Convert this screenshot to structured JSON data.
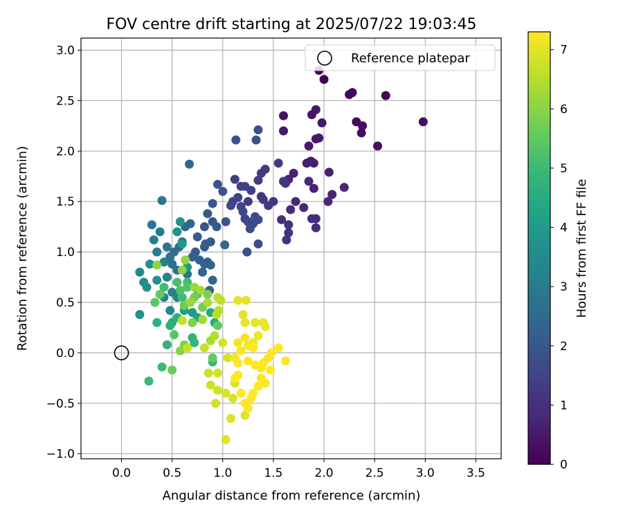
{
  "chart_data": {
    "type": "scatter",
    "title": "FOV centre drift starting at 2025/07/22 19:03:45",
    "xlabel": "Angular distance from reference (arcmin)",
    "ylabel": "Rotation from reference (arcmin)",
    "xlim": [
      -0.4,
      3.75
    ],
    "ylim": [
      -1.05,
      3.12
    ],
    "xticks": [
      0.0,
      0.5,
      1.0,
      1.5,
      2.0,
      2.5,
      3.0,
      3.5
    ],
    "xtick_labels": [
      "0.0",
      "0.5",
      "1.0",
      "1.5",
      "2.0",
      "2.5",
      "3.0",
      "3.5"
    ],
    "yticks": [
      -1.0,
      -0.5,
      0.0,
      0.5,
      1.0,
      1.5,
      2.0,
      2.5,
      3.0
    ],
    "ytick_labels": [
      "−1.0",
      "−0.5",
      "0.0",
      "0.5",
      "1.0",
      "1.5",
      "2.0",
      "2.5",
      "3.0"
    ],
    "grid": true,
    "legend": {
      "label": "Reference platepar",
      "position": "upper right"
    },
    "reference_point": {
      "x": 0.0,
      "y": 0.0
    },
    "colorbar": {
      "label": "Hours from first FF file",
      "colormap": "viridis",
      "range": [
        0,
        7.3
      ],
      "ticks": [
        0,
        1,
        2,
        3,
        4,
        5,
        6,
        7
      ],
      "tick_labels": [
        "0",
        "1",
        "2",
        "3",
        "4",
        "5",
        "6",
        "7"
      ]
    },
    "colormap_stops": [
      "#440154",
      "#482878",
      "#3e4989",
      "#31688e",
      "#26828e",
      "#1f9e89",
      "#35b779",
      "#6ece58",
      "#b5de2b",
      "#fde725"
    ],
    "series_columns": [
      "x",
      "y",
      "hours"
    ],
    "points": [
      [
        1.95,
        2.8,
        0.02
      ],
      [
        2.0,
        2.71,
        0.05
      ],
      [
        2.25,
        2.56,
        0.1
      ],
      [
        2.28,
        2.58,
        0.12
      ],
      [
        2.61,
        2.55,
        0.15
      ],
      [
        2.32,
        2.29,
        0.2
      ],
      [
        2.38,
        2.25,
        0.22
      ],
      [
        2.37,
        2.18,
        0.25
      ],
      [
        2.98,
        2.29,
        0.3
      ],
      [
        2.53,
        2.05,
        0.33
      ],
      [
        1.6,
        2.35,
        0.38
      ],
      [
        1.88,
        2.36,
        0.4
      ],
      [
        1.92,
        2.41,
        0.42
      ],
      [
        1.98,
        2.28,
        0.45
      ],
      [
        1.6,
        2.2,
        0.48
      ],
      [
        1.92,
        2.12,
        0.5
      ],
      [
        1.95,
        2.13,
        0.52
      ],
      [
        1.85,
        2.05,
        0.55
      ],
      [
        1.87,
        1.9,
        0.58
      ],
      [
        1.9,
        1.88,
        0.6
      ],
      [
        1.83,
        1.88,
        0.62
      ],
      [
        2.05,
        1.79,
        0.65
      ],
      [
        1.7,
        1.78,
        0.68
      ],
      [
        1.65,
        1.72,
        0.7
      ],
      [
        1.9,
        1.63,
        0.72
      ],
      [
        2.08,
        1.57,
        0.75
      ],
      [
        2.2,
        1.64,
        0.78
      ],
      [
        2.04,
        1.5,
        0.8
      ],
      [
        1.85,
        1.7,
        0.82
      ],
      [
        1.72,
        1.5,
        0.85
      ],
      [
        1.8,
        1.44,
        0.88
      ],
      [
        1.67,
        1.42,
        0.9
      ],
      [
        1.92,
        1.33,
        0.92
      ],
      [
        1.88,
        1.33,
        0.95
      ],
      [
        1.92,
        1.24,
        0.98
      ],
      [
        1.58,
        1.32,
        1.0
      ],
      [
        1.65,
        1.27,
        1.02
      ],
      [
        1.65,
        1.19,
        1.05
      ],
      [
        1.63,
        1.12,
        1.08
      ],
      [
        1.6,
        1.7,
        1.1
      ],
      [
        1.62,
        1.68,
        1.12
      ],
      [
        1.5,
        1.5,
        1.15
      ],
      [
        1.45,
        1.46,
        1.18
      ],
      [
        1.38,
        1.55,
        1.2
      ],
      [
        1.4,
        1.52,
        1.22
      ],
      [
        1.55,
        1.88,
        1.25
      ],
      [
        1.38,
        1.78,
        1.28
      ],
      [
        1.42,
        1.82,
        1.3
      ],
      [
        1.35,
        1.71,
        1.32
      ],
      [
        1.25,
        1.5,
        1.35
      ],
      [
        1.28,
        1.61,
        1.38
      ],
      [
        1.12,
        1.72,
        1.4
      ],
      [
        1.22,
        1.65,
        1.42
      ],
      [
        1.18,
        1.65,
        1.45
      ],
      [
        1.15,
        1.54,
        1.48
      ],
      [
        1.1,
        1.5,
        1.5
      ],
      [
        1.08,
        1.46,
        1.52
      ],
      [
        1.18,
        1.45,
        1.55
      ],
      [
        1.2,
        1.4,
        1.58
      ],
      [
        1.22,
        1.33,
        1.6
      ],
      [
        1.25,
        1.3,
        1.62
      ],
      [
        1.3,
        1.28,
        1.65
      ],
      [
        1.35,
        1.32,
        1.68
      ],
      [
        1.32,
        1.35,
        1.7
      ],
      [
        1.27,
        1.23,
        1.72
      ],
      [
        1.35,
        1.08,
        1.75
      ],
      [
        1.24,
        1.0,
        1.78
      ],
      [
        1.35,
        2.21,
        1.8
      ],
      [
        1.33,
        2.11,
        1.82
      ],
      [
        1.13,
        2.11,
        1.85
      ],
      [
        0.95,
        1.67,
        1.88
      ],
      [
        1.0,
        1.6,
        1.9
      ],
      [
        1.03,
        1.3,
        1.92
      ],
      [
        0.9,
        1.48,
        1.95
      ],
      [
        0.9,
        1.3,
        1.98
      ],
      [
        0.85,
        1.38,
        2.0
      ],
      [
        0.82,
        1.25,
        2.02
      ],
      [
        0.94,
        1.25,
        2.05
      ],
      [
        0.88,
        1.1,
        2.08
      ],
      [
        0.83,
        1.08,
        2.1
      ],
      [
        0.82,
        1.05,
        2.12
      ],
      [
        0.75,
        1.15,
        2.15
      ],
      [
        0.73,
        1.0,
        2.18
      ],
      [
        0.7,
        0.95,
        2.2
      ],
      [
        0.77,
        0.92,
        2.22
      ],
      [
        0.82,
        0.88,
        2.25
      ],
      [
        0.88,
        0.87,
        2.28
      ],
      [
        0.85,
        0.9,
        2.3
      ],
      [
        0.8,
        0.8,
        2.32
      ],
      [
        0.9,
        0.72,
        2.35
      ],
      [
        0.87,
        0.62,
        2.38
      ],
      [
        1.02,
        1.07,
        2.4
      ],
      [
        0.68,
        1.28,
        2.42
      ],
      [
        0.67,
        1.87,
        2.45
      ],
      [
        0.63,
        1.25,
        2.48
      ],
      [
        0.6,
        1.1,
        2.5
      ],
      [
        0.57,
        1.05,
        2.55
      ],
      [
        0.52,
        1.0,
        2.6
      ],
      [
        0.5,
        0.88,
        2.65
      ],
      [
        0.55,
        0.82,
        2.7
      ],
      [
        0.65,
        0.78,
        2.75
      ],
      [
        0.48,
        0.95,
        2.8
      ],
      [
        0.45,
        1.05,
        2.85
      ],
      [
        0.4,
        1.51,
        2.9
      ],
      [
        0.3,
        1.27,
        2.95
      ],
      [
        0.38,
        1.2,
        3.0
      ],
      [
        0.32,
        1.12,
        3.05
      ],
      [
        0.35,
        1.0,
        3.1
      ],
      [
        0.42,
        0.9,
        3.15
      ],
      [
        0.45,
        0.75,
        3.2
      ],
      [
        0.5,
        0.6,
        3.25
      ],
      [
        0.55,
        0.55,
        3.3
      ],
      [
        0.42,
        0.55,
        3.35
      ],
      [
        0.48,
        0.42,
        3.4
      ],
      [
        0.18,
        0.8,
        3.45
      ],
      [
        0.22,
        0.7,
        3.5
      ],
      [
        0.25,
        0.65,
        3.55
      ],
      [
        0.18,
        0.38,
        3.6
      ],
      [
        0.28,
        0.88,
        3.65
      ],
      [
        0.35,
        0.72,
        3.7
      ],
      [
        0.58,
        1.3,
        3.75
      ],
      [
        0.55,
        1.2,
        3.8
      ],
      [
        0.6,
        1.08,
        3.85
      ],
      [
        0.65,
        0.85,
        3.9
      ],
      [
        0.68,
        0.5,
        3.95
      ],
      [
        0.7,
        0.4,
        4.0
      ],
      [
        0.62,
        0.42,
        4.1
      ],
      [
        0.75,
        0.35,
        4.2
      ],
      [
        0.88,
        0.4,
        4.3
      ],
      [
        0.92,
        0.3,
        4.4
      ],
      [
        0.5,
        0.3,
        4.5
      ],
      [
        0.55,
        0.35,
        4.55
      ],
      [
        0.35,
        0.3,
        4.6
      ],
      [
        0.48,
        0.27,
        4.65
      ],
      [
        0.7,
        0.15,
        4.7
      ],
      [
        0.45,
        0.08,
        4.75
      ],
      [
        0.72,
        0.1,
        4.8
      ],
      [
        0.9,
        -0.09,
        4.85
      ],
      [
        0.27,
        -0.28,
        4.9
      ],
      [
        0.4,
        -0.14,
        4.95
      ],
      [
        0.6,
        0.55,
        5.0
      ],
      [
        0.42,
        0.65,
        5.05
      ],
      [
        0.65,
        0.7,
        5.1
      ],
      [
        0.55,
        0.7,
        5.15
      ],
      [
        0.58,
        0.62,
        5.2
      ],
      [
        0.65,
        0.65,
        5.25
      ],
      [
        0.75,
        0.58,
        5.3
      ],
      [
        0.52,
        0.18,
        5.35
      ],
      [
        0.33,
        0.5,
        5.4
      ],
      [
        0.38,
        0.58,
        5.45
      ],
      [
        0.95,
        0.27,
        5.5
      ],
      [
        0.9,
        -0.05,
        5.55
      ],
      [
        0.5,
        -0.17,
        5.6
      ],
      [
        0.62,
        0.47,
        5.65
      ],
      [
        0.72,
        0.55,
        5.7
      ],
      [
        0.8,
        0.45,
        5.75
      ],
      [
        0.85,
        0.58,
        5.8
      ],
      [
        0.7,
        0.3,
        5.85
      ],
      [
        0.62,
        0.08,
        5.9
      ],
      [
        0.58,
        0.02,
        5.95
      ],
      [
        0.35,
        0.87,
        6.0
      ],
      [
        0.6,
        0.82,
        6.05
      ],
      [
        0.63,
        0.92,
        6.1
      ],
      [
        0.72,
        0.65,
        6.15
      ],
      [
        0.68,
        0.5,
        6.2
      ],
      [
        0.78,
        0.62,
        6.25
      ],
      [
        0.8,
        0.33,
        6.3
      ],
      [
        0.85,
        0.5,
        6.35
      ],
      [
        0.88,
        0.12,
        6.4
      ],
      [
        0.92,
        0.17,
        6.45
      ],
      [
        0.94,
        0.38,
        6.5
      ],
      [
        0.96,
        0.42,
        6.55
      ],
      [
        0.98,
        0.52,
        6.6
      ],
      [
        0.95,
        0.55,
        6.62
      ],
      [
        0.6,
        0.32,
        6.65
      ],
      [
        0.65,
        0.05,
        6.68
      ],
      [
        0.82,
        0.05,
        6.7
      ],
      [
        0.86,
        -0.2,
        6.72
      ],
      [
        0.88,
        -0.32,
        6.75
      ],
      [
        0.95,
        -0.37,
        6.78
      ],
      [
        0.93,
        -0.5,
        6.8
      ],
      [
        0.95,
        -0.2,
        6.82
      ],
      [
        1.0,
        0.1,
        6.84
      ],
      [
        1.05,
        -0.05,
        6.86
      ],
      [
        1.03,
        -0.4,
        6.88
      ],
      [
        1.1,
        -0.45,
        6.9
      ],
      [
        1.12,
        -0.3,
        6.92
      ],
      [
        1.08,
        -0.65,
        6.94
      ],
      [
        1.22,
        -0.62,
        6.96
      ],
      [
        1.03,
        -0.86,
        6.98
      ],
      [
        1.15,
        0.52,
        7.0
      ],
      [
        1.23,
        0.52,
        7.02
      ],
      [
        1.2,
        0.38,
        7.04
      ],
      [
        1.22,
        0.3,
        7.06
      ],
      [
        1.32,
        0.3,
        7.08
      ],
      [
        1.4,
        0.3,
        7.1
      ],
      [
        1.42,
        0.26,
        7.12
      ],
      [
        1.35,
        0.17,
        7.14
      ],
      [
        1.3,
        0.1,
        7.16
      ],
      [
        1.25,
        0.07,
        7.18
      ],
      [
        1.22,
        0.15,
        7.2
      ],
      [
        1.15,
        0.1,
        7.22
      ],
      [
        1.18,
        0.02,
        7.24
      ],
      [
        1.12,
        -0.05,
        7.26
      ],
      [
        1.15,
        -0.1,
        7.28
      ],
      [
        1.25,
        -0.08,
        7.29
      ],
      [
        1.32,
        -0.12,
        7.3
      ],
      [
        1.38,
        -0.15,
        7.3
      ],
      [
        1.45,
        -0.05,
        7.3
      ],
      [
        1.47,
        -0.17,
        7.3
      ],
      [
        1.42,
        -0.3,
        7.3
      ],
      [
        1.35,
        -0.33,
        7.3
      ],
      [
        1.3,
        -0.4,
        7.3
      ],
      [
        1.28,
        -0.45,
        7.3
      ],
      [
        1.22,
        -0.5,
        7.3
      ],
      [
        1.18,
        -0.4,
        7.3
      ],
      [
        1.15,
        -0.22,
        7.3
      ],
      [
        1.12,
        -0.25,
        7.3
      ],
      [
        1.25,
        -0.55,
        7.3
      ],
      [
        1.62,
        -0.08,
        7.3
      ],
      [
        1.48,
        0.0,
        7.3
      ],
      [
        1.55,
        0.05,
        7.3
      ],
      [
        1.4,
        -0.1,
        7.3
      ],
      [
        1.3,
        0.05,
        7.3
      ],
      [
        1.38,
        -0.25,
        7.3
      ]
    ]
  }
}
